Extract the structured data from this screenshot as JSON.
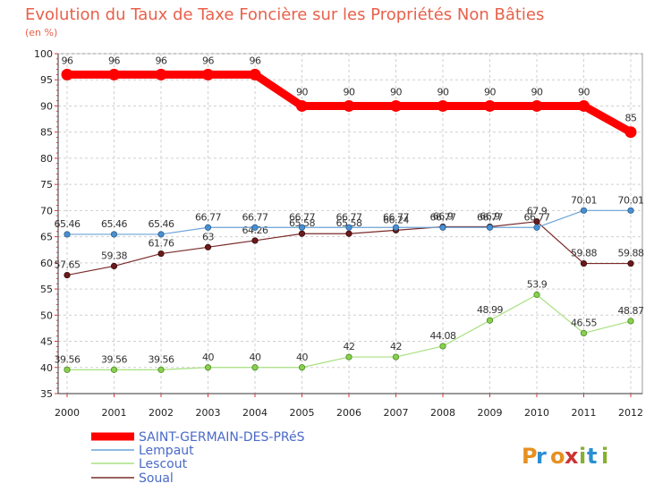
{
  "chart_data": {
    "type": "line",
    "title": "Evolution du Taux de Taxe Foncière sur les Propriétés Non Bâties",
    "subtitle": "(en %)",
    "xlabel": "",
    "ylabel": "",
    "categories": [
      "2000",
      "2001",
      "2002",
      "2003",
      "2004",
      "2005",
      "2006",
      "2007",
      "2008",
      "2009",
      "2010",
      "2011",
      "2012"
    ],
    "ylim": [
      35,
      100
    ],
    "yticks": [
      35,
      40,
      45,
      50,
      55,
      60,
      65,
      70,
      75,
      80,
      85,
      90,
      95,
      100
    ],
    "grid": true,
    "legend_position": "bottom-left",
    "series": [
      {
        "name": "SAINT-GERMAIN-DES-PRéS",
        "color": "#ff0000",
        "values": [
          96,
          96,
          96,
          96,
          96,
          90,
          90,
          90,
          90,
          90,
          90,
          90,
          85
        ],
        "labels": [
          "96",
          "96",
          "96",
          "96",
          "96",
          "90",
          "90",
          "90",
          "90",
          "90",
          "90",
          "90",
          "85"
        ]
      },
      {
        "name": "Lempaut",
        "color": "#5b9bd5",
        "values": [
          65.46,
          65.46,
          65.46,
          66.77,
          66.77,
          66.77,
          66.77,
          66.77,
          66.77,
          66.77,
          66.77,
          70.01,
          70.01
        ],
        "labels": [
          "65.46",
          "65.46",
          "65.46",
          "66.77",
          "66.77",
          "66.77",
          "66.77",
          "66.77",
          "66.77",
          "66.77",
          "66.77",
          "70.01",
          "70.01"
        ]
      },
      {
        "name": "Lescout",
        "color": "#99dd66",
        "values": [
          39.56,
          39.56,
          39.56,
          40,
          40,
          40,
          42,
          42,
          44.08,
          48.99,
          53.9,
          46.55,
          48.87
        ],
        "labels": [
          "39.56",
          "39.56",
          "39.56",
          "40",
          "40",
          "40",
          "42",
          "42",
          "44.08",
          "48.99",
          "53.9",
          "46.55",
          "48.87"
        ]
      },
      {
        "name": "Soual",
        "color": "#7a2a2a",
        "values": [
          57.65,
          59.38,
          61.76,
          63,
          64.26,
          65.58,
          65.58,
          66.24,
          66.9,
          66.9,
          67.9,
          59.88,
          59.88
        ],
        "labels": [
          "57.65",
          "59.38",
          "61.76",
          "63",
          "64.26",
          "65.58",
          "65.58",
          "66.24",
          "66.9",
          "66.9",
          "67.9",
          "59.88",
          "59.88"
        ]
      }
    ],
    "watermark": "Proxiti"
  }
}
